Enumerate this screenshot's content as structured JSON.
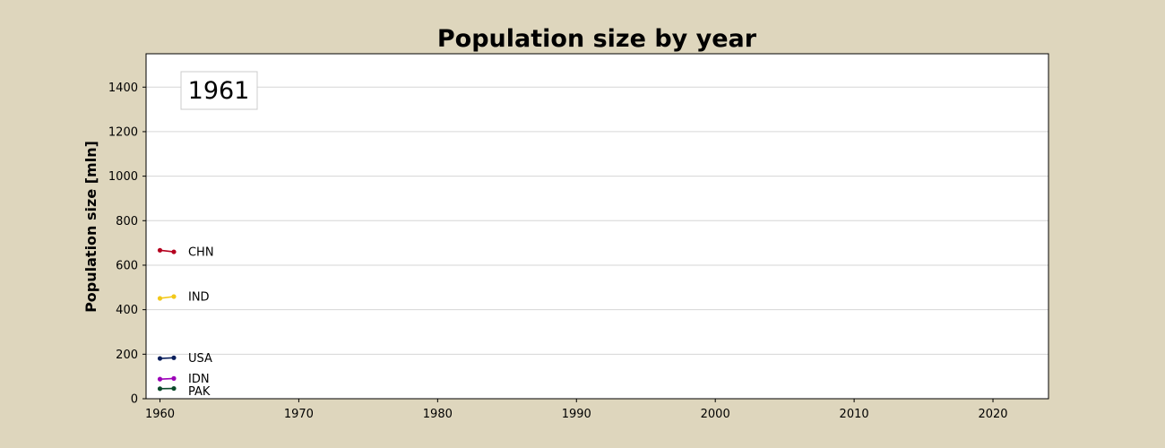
{
  "chart_data": {
    "type": "line",
    "title": "Population size by year",
    "xlabel": "",
    "ylabel": "Population size [mln]",
    "xlim": [
      1959,
      2024
    ],
    "ylim": [
      0,
      1550
    ],
    "xticks": [
      1960,
      1970,
      1980,
      1990,
      2000,
      2010,
      2020
    ],
    "yticks": [
      0,
      200,
      400,
      600,
      800,
      1000,
      1200,
      1400
    ],
    "grid": "horizontal",
    "current_year": "1961",
    "x": [
      1960,
      1961
    ],
    "series": [
      {
        "name": "CHN",
        "color": "#b5001f",
        "values": [
          667,
          660
        ]
      },
      {
        "name": "IND",
        "color": "#f2c81a",
        "values": [
          451,
          459
        ]
      },
      {
        "name": "USA",
        "color": "#0a1f5c",
        "values": [
          181,
          184
        ]
      },
      {
        "name": "IDN",
        "color": "#9c00b8",
        "values": [
          88,
          91
        ]
      },
      {
        "name": "PAK",
        "color": "#0a4a2a",
        "values": [
          45,
          46
        ]
      }
    ]
  }
}
